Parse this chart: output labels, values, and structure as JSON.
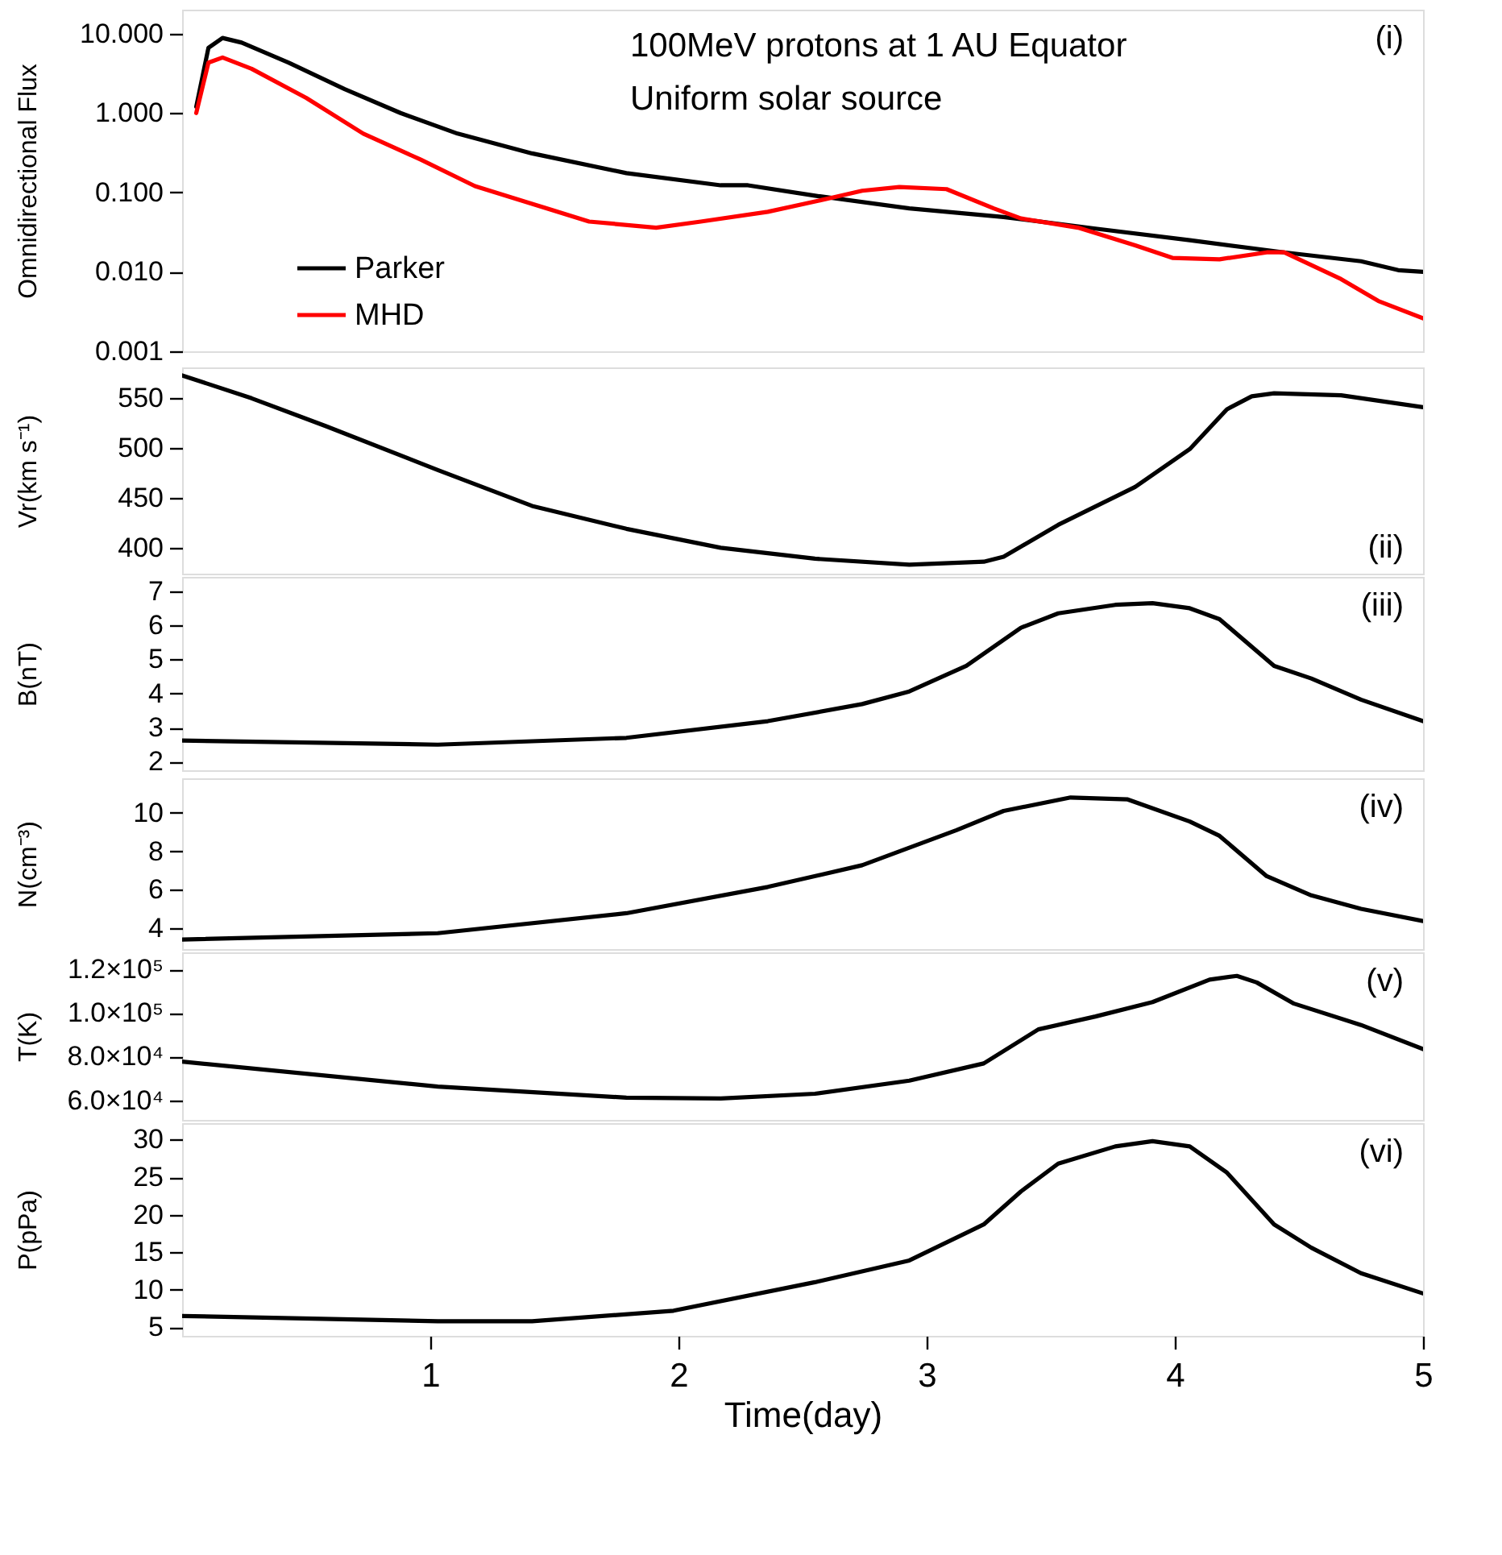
{
  "chart_data": [
    {
      "type": "line",
      "ylabel": "Omnidirectional Flux",
      "annotations": [
        "100MeV protons at 1 AU Equator",
        "Uniform solar source",
        "(i)"
      ],
      "log": "y",
      "xlim": [
        0,
        5
      ],
      "xticks": [
        1,
        2,
        3,
        4,
        5
      ],
      "ylim": [
        0.001,
        20
      ],
      "yticks": [
        {
          "value": 10,
          "label": "10.000"
        },
        {
          "value": 1,
          "label": "1.000"
        },
        {
          "value": 0.1,
          "label": "0.100"
        },
        {
          "value": 0.01,
          "label": "0.010"
        },
        {
          "value": 0.001,
          "label": "0.001"
        }
      ],
      "grid": false,
      "legend": "bottom left",
      "tick_labels": "y",
      "series": [
        {
          "name": "Parker",
          "color": "#000000",
          "x": [
            0.057,
            0.106,
            0.163,
            0.24,
            0.43,
            0.655,
            0.88,
            1.11,
            1.41,
            1.79,
            2.17,
            2.28,
            2.55,
            2.93,
            3.31,
            3.68,
            4.06,
            4.44,
            4.75,
            4.9,
            5.0
          ],
          "values": [
            1.2,
            6.6,
            8.8,
            7.7,
            4.3,
            2.0,
            1.0,
            0.55,
            0.31,
            0.175,
            0.123,
            0.123,
            0.091,
            0.063,
            0.049,
            0.035,
            0.025,
            0.0176,
            0.0136,
            0.0105,
            0.01
          ]
        },
        {
          "name": "MHD",
          "color": "#ff0000",
          "x": [
            0.057,
            0.106,
            0.163,
            0.28,
            0.5,
            0.73,
            0.96,
            1.18,
            1.41,
            1.64,
            1.91,
            2.09,
            2.36,
            2.62,
            2.74,
            2.89,
            3.08,
            3.27,
            3.38,
            3.61,
            3.84,
            3.99,
            4.18,
            4.37,
            4.44,
            4.67,
            4.82,
            5.0
          ],
          "values": [
            1.0,
            4.3,
            5.0,
            3.6,
            1.55,
            0.55,
            0.26,
            0.12,
            0.072,
            0.043,
            0.036,
            0.043,
            0.057,
            0.086,
            0.105,
            0.117,
            0.11,
            0.063,
            0.047,
            0.036,
            0.0216,
            0.015,
            0.0144,
            0.0176,
            0.0176,
            0.0081,
            0.0043,
            0.0026
          ]
        }
      ]
    },
    {
      "type": "line",
      "ylabel": "Vr(km s⁻¹)",
      "annotations": [
        "(ii)"
      ],
      "xlim": [
        0,
        5
      ],
      "xticks": [
        1,
        2,
        3,
        4,
        5
      ],
      "ylim": [
        374,
        581
      ],
      "yticks": [
        400,
        450,
        500,
        550
      ],
      "grid": false,
      "tick_labels": "y",
      "series": [
        {
          "color": "#000000",
          "x": [
            0,
            0.28,
            0.58,
            1.03,
            1.41,
            1.79,
            2.17,
            2.55,
            2.93,
            3.23,
            3.31,
            3.53,
            3.84,
            4.06,
            4.21,
            4.31,
            4.4,
            4.67,
            5.0
          ],
          "values": [
            573,
            550,
            522,
            478,
            442,
            419,
            400,
            389,
            383,
            386,
            391,
            423,
            461,
            499,
            539,
            552,
            555,
            553,
            541
          ]
        }
      ]
    },
    {
      "type": "line",
      "ylabel": "B(nT)",
      "annotations": [
        "(iii)"
      ],
      "xlim": [
        0,
        5
      ],
      "xticks": [
        1,
        2,
        3,
        4,
        5
      ],
      "ylim": [
        1.75,
        7.42
      ],
      "yticks": [
        2,
        3,
        4,
        5,
        6,
        7
      ],
      "grid": false,
      "tick_labels": "y",
      "series": [
        {
          "color": "#000000",
          "x": [
            0,
            1.03,
            1.79,
            2.36,
            2.74,
            2.93,
            3.16,
            3.38,
            3.53,
            3.76,
            3.91,
            4.06,
            4.18,
            4.4,
            4.55,
            4.75,
            5.0
          ],
          "values": [
            2.62,
            2.5,
            2.7,
            3.19,
            3.69,
            4.06,
            4.81,
            5.93,
            6.35,
            6.6,
            6.65,
            6.5,
            6.18,
            4.81,
            4.44,
            3.82,
            3.19
          ]
        }
      ]
    },
    {
      "type": "line",
      "ylabel": "N(cm⁻³)",
      "annotations": [
        "(iv)"
      ],
      "xlim": [
        0,
        5
      ],
      "xticks": [
        1,
        2,
        3,
        4,
        5
      ],
      "ylim": [
        2.9,
        11.8
      ],
      "yticks": [
        4,
        6,
        8,
        10
      ],
      "grid": false,
      "tick_labels": "y",
      "series": [
        {
          "color": "#000000",
          "x": [
            0,
            1.03,
            1.79,
            2.36,
            2.74,
            3.12,
            3.31,
            3.58,
            3.81,
            4.06,
            4.18,
            4.37,
            4.55,
            4.75,
            5.0
          ],
          "values": [
            3.4,
            3.73,
            4.77,
            6.14,
            7.27,
            9.1,
            10.1,
            10.8,
            10.7,
            9.55,
            8.8,
            6.7,
            5.7,
            5.0,
            4.36
          ]
        }
      ]
    },
    {
      "type": "line",
      "ylabel": "T(K)",
      "annotations": [
        "(v)"
      ],
      "xlim": [
        0,
        5
      ],
      "xticks": [
        1,
        2,
        3,
        4,
        5
      ],
      "ylim": [
        51000,
        127800
      ],
      "yticks": [
        {
          "value": 60000,
          "label": "6.0×10⁴"
        },
        {
          "value": 80000,
          "label": "8.0×10⁴"
        },
        {
          "value": 100000,
          "label": "1.0×10⁵"
        },
        {
          "value": 120000,
          "label": "1.2×10⁵"
        }
      ],
      "grid": false,
      "tick_labels": "y",
      "series": [
        {
          "color": "#000000",
          "x": [
            0,
            1.03,
            1.79,
            2.17,
            2.55,
            2.93,
            3.23,
            3.45,
            3.68,
            3.91,
            4.14,
            4.25,
            4.33,
            4.48,
            4.75,
            5.0
          ],
          "values": [
            77700,
            66300,
            61200,
            60800,
            63000,
            69000,
            76900,
            92500,
            98400,
            105000,
            115300,
            117000,
            114000,
            104300,
            94500,
            83500
          ]
        }
      ]
    },
    {
      "type": "line",
      "ylabel": "P(pPa)",
      "xlabel": "Time(day)",
      "annotations": [
        "(vi)"
      ],
      "xlim": [
        0,
        5
      ],
      "xticks": [
        1,
        2,
        3,
        4,
        5
      ],
      "ylim": [
        3.85,
        32.2
      ],
      "yticks": [
        5,
        10,
        15,
        20,
        25,
        30
      ],
      "grid": false,
      "series": [
        {
          "color": "#000000",
          "x": [
            0,
            1.03,
            1.41,
            1.98,
            2.55,
            2.93,
            3.23,
            3.38,
            3.53,
            3.76,
            3.91,
            4.06,
            4.21,
            4.4,
            4.55,
            4.75,
            5.0
          ],
          "values": [
            6.5,
            5.8,
            5.8,
            7.2,
            11.0,
            13.9,
            18.7,
            23.1,
            26.8,
            29.1,
            29.8,
            29.1,
            25.6,
            18.7,
            15.6,
            12.2,
            9.5
          ]
        }
      ]
    }
  ]
}
